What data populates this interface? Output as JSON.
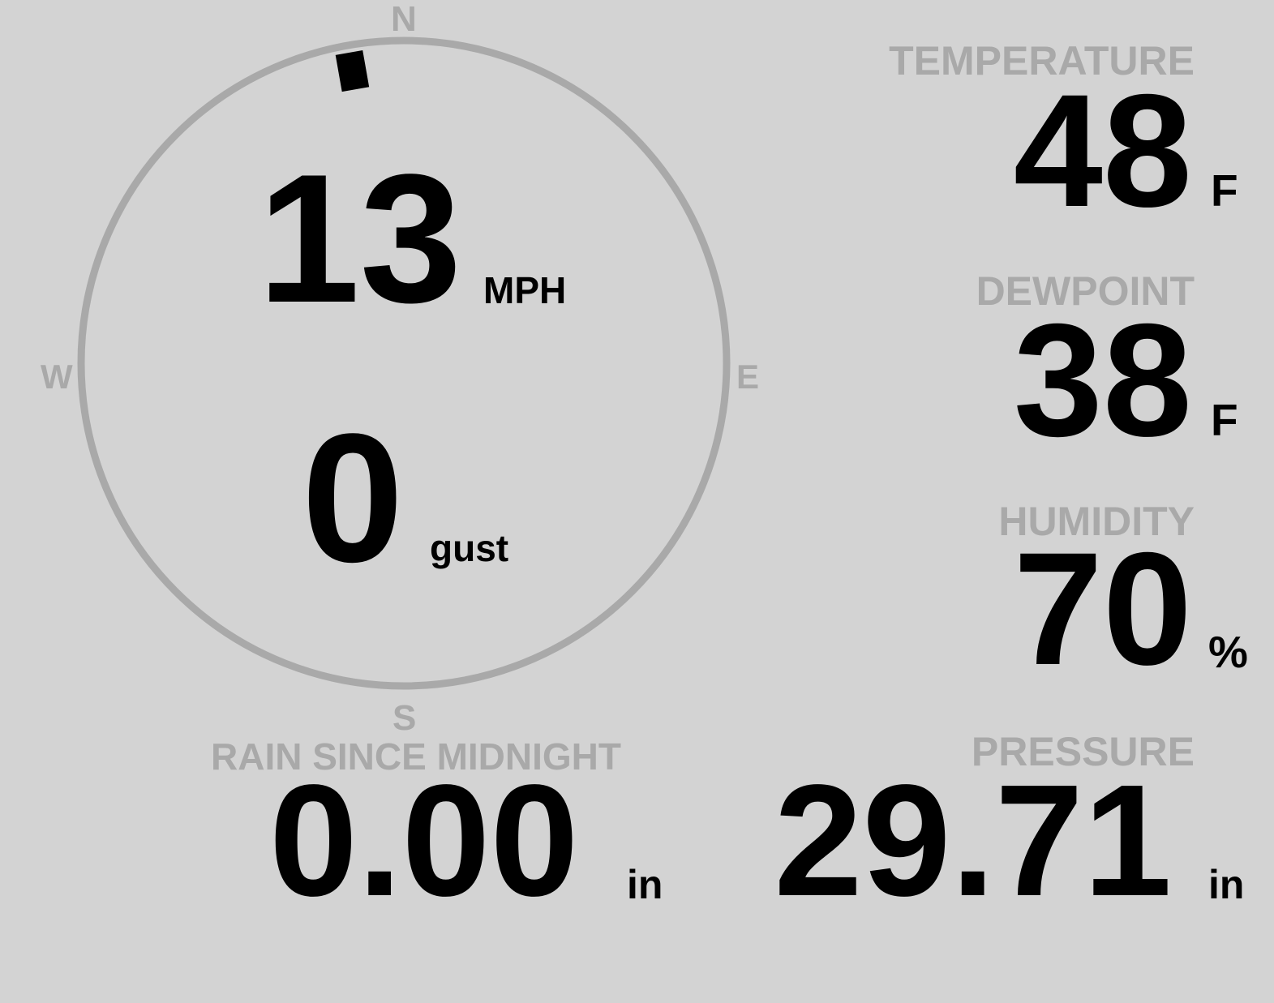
{
  "colors": {
    "background": "#d3d3d3",
    "label": "#a9a9a9",
    "value": "#000000",
    "ring": "#a9a9a9",
    "needle": "#000000"
  },
  "wind": {
    "compass": {
      "north": "N",
      "south": "S",
      "east": "E",
      "west": "W"
    },
    "direction_degrees": 350,
    "speed": "13",
    "speed_unit": "MPH",
    "gust": "0",
    "gust_label": "gust"
  },
  "temperature": {
    "label": "TEMPERATURE",
    "value": "48",
    "unit": "F"
  },
  "dewpoint": {
    "label": "DEWPOINT",
    "value": "38",
    "unit": "F"
  },
  "humidity": {
    "label": "HUMIDITY",
    "value": "70",
    "unit": "%"
  },
  "rain": {
    "label": "RAIN SINCE MIDNIGHT",
    "value": "0.00",
    "unit": "in"
  },
  "pressure": {
    "label": "PRESSURE",
    "value": "29.71",
    "unit": "in"
  }
}
